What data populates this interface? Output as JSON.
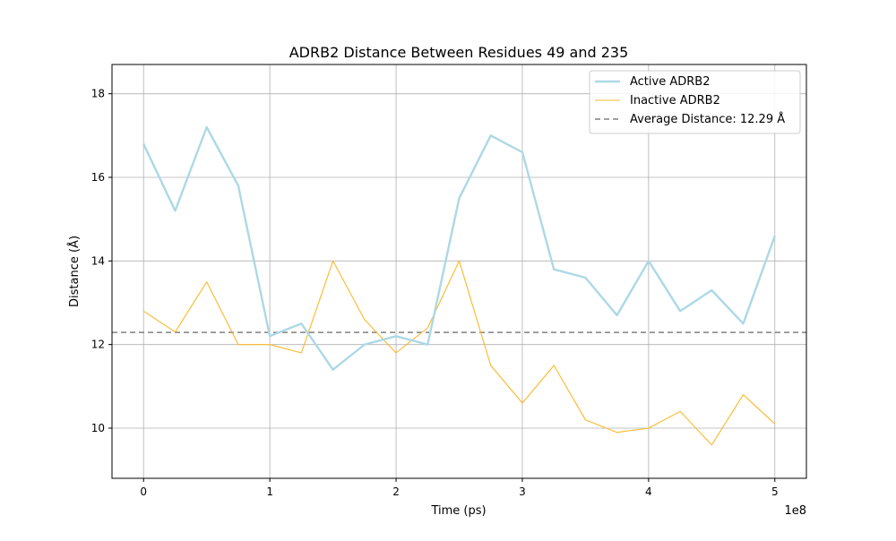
{
  "chart_data": {
    "type": "line",
    "title": "ADRB2 Distance Between Residues 49 and 235",
    "xlabel": "Time (ps)",
    "ylabel": "Distance (Å)",
    "x_offset_label": "1e8",
    "xlim": [
      -0.25,
      5.25
    ],
    "ylim": [
      8.8,
      18.7
    ],
    "x_ticks": [
      0,
      1,
      2,
      3,
      4,
      5
    ],
    "x_tick_labels": [
      "0",
      "1",
      "2",
      "3",
      "4",
      "5"
    ],
    "y_ticks": [
      10,
      12,
      14,
      16,
      18
    ],
    "y_tick_labels": [
      "10",
      "12",
      "14",
      "16",
      "18"
    ],
    "grid": true,
    "legend_position": "upper right",
    "average_line": {
      "name": "Average Distance: 12.29 Å",
      "value": 12.29,
      "color": "#808080",
      "style": "dashed"
    },
    "series": [
      {
        "name": "Active ADRB2",
        "color": "#add8e6",
        "x": [
          0,
          0.25,
          0.5,
          0.75,
          1.0,
          1.25,
          1.5,
          1.75,
          2.0,
          2.25,
          2.5,
          2.75,
          3.0,
          3.25,
          3.5,
          3.75,
          4.0,
          4.25,
          4.5,
          4.75,
          5.0
        ],
        "values": [
          16.8,
          15.2,
          17.2,
          15.8,
          12.2,
          12.5,
          11.4,
          12.0,
          12.2,
          12.0,
          15.5,
          17.0,
          16.6,
          13.8,
          13.6,
          12.7,
          14.0,
          12.8,
          13.3,
          12.5,
          14.6
        ]
      },
      {
        "name": "Inactive ADRB2",
        "color": "#fbb829",
        "x": [
          0,
          0.25,
          0.5,
          0.75,
          1.0,
          1.25,
          1.5,
          1.75,
          2.0,
          2.25,
          2.5,
          2.75,
          3.0,
          3.25,
          3.5,
          3.75,
          4.0,
          4.25,
          4.5,
          4.75,
          5.0
        ],
        "values": [
          12.8,
          12.3,
          13.5,
          12.0,
          12.0,
          11.8,
          14.0,
          12.6,
          11.8,
          12.4,
          14.0,
          11.5,
          10.6,
          11.5,
          10.2,
          9.9,
          10.0,
          10.4,
          9.6,
          10.8,
          10.1
        ]
      }
    ]
  }
}
